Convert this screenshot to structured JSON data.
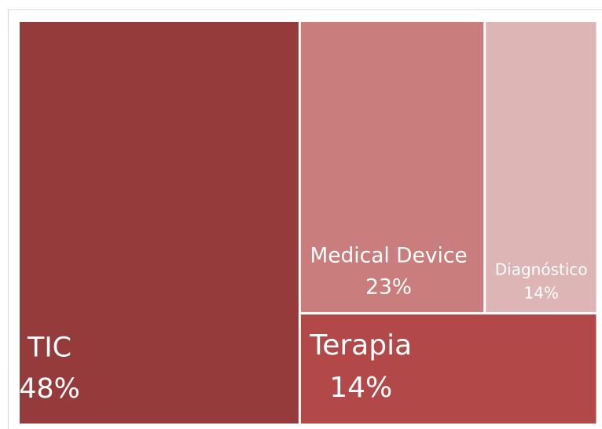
{
  "chart_data": {
    "type": "treemap",
    "categories": [
      "TIC",
      "Medical Device",
      "Diagnóstico",
      "Terapia"
    ],
    "values": [
      48,
      23,
      14,
      14
    ],
    "value_labels": [
      "48%",
      "23%",
      "14%",
      "14%"
    ],
    "colors": [
      "#953b3b",
      "#c97d7d",
      "#ddb5b5",
      "#b24848"
    ]
  }
}
